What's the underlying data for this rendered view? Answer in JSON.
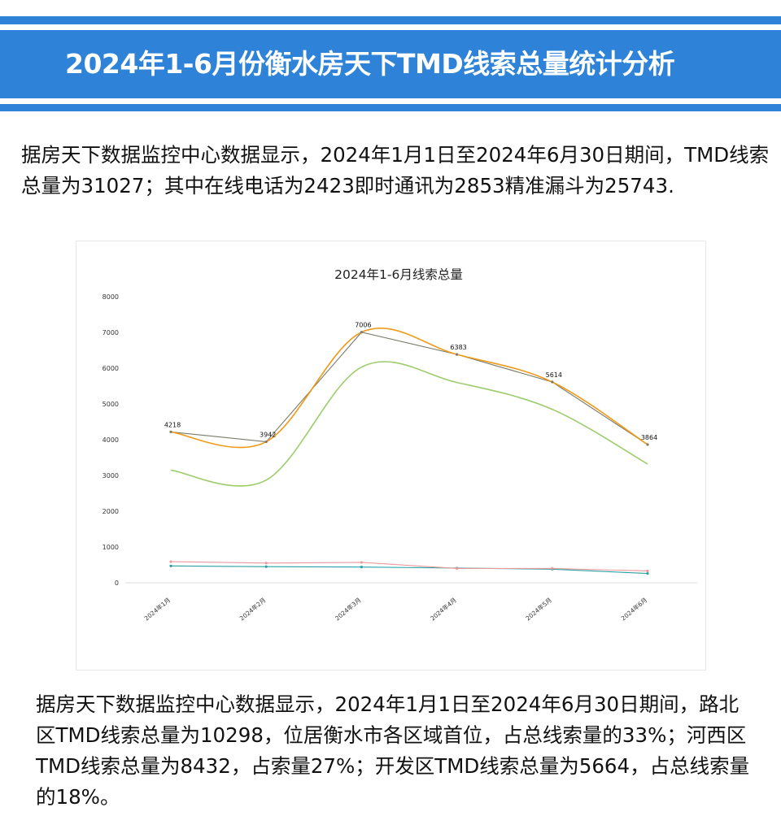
{
  "banner": {
    "title": "2024年1-6月份衡水房天下TMD线索总量统计分析"
  },
  "intro": {
    "text": "据房天下数据监控中心数据显示，2024年1月1日至2024年6月30日期间，TMD线索总量为31027；其中在线电话为2423即时通讯为2853精准漏斗为25743."
  },
  "summary": {
    "text": "据房天下数据监控中心数据显示，2024年1月1日至2024年6月30日期间，路北区TMD线索总量为10298，位居衡水市各区域首位，占总线索量的33%；河西区TMD线索总量为8432，占索量27%；开发区TMD线索总量为5664，占总线索量的18%。"
  },
  "colors": {
    "banner": "#2e83d8",
    "total": "#ee9a1a",
    "total_straight": "#7a7a6a",
    "funnel": "#9dcc6c",
    "im": "#e89a9a",
    "phone": "#2aa0a4"
  },
  "chart_data": {
    "type": "line",
    "title": "2024年1-6月线索总量",
    "categories": [
      "2024年1月",
      "2024年2月",
      "2024年3月",
      "2024年4月",
      "2024年5月",
      "2024年6月"
    ],
    "ylim": [
      0,
      8000
    ],
    "yticks": [
      0,
      1000,
      2000,
      3000,
      4000,
      5000,
      6000,
      7000,
      8000
    ],
    "grid": false,
    "legend": "none",
    "series": [
      {
        "values": [
          4218,
          3942,
          7006,
          6383,
          5614,
          3864
        ],
        "smooth": true,
        "labels": true,
        "color": "#ee9a1a"
      },
      {
        "values": [
          4218,
          3942,
          7006,
          6383,
          5614,
          3864
        ],
        "smooth": false,
        "color": "#7a7a6a"
      },
      {
        "values": [
          3150,
          2870,
          6030,
          5600,
          4850,
          3320
        ],
        "smooth": true,
        "color": "#9dcc6c"
      },
      {
        "values": [
          590,
          550,
          570,
          400,
          400,
          330
        ],
        "smooth": false,
        "color": "#e89a9a"
      },
      {
        "values": [
          470,
          450,
          440,
          410,
          380,
          260
        ],
        "smooth": false,
        "color": "#2aa0a4"
      }
    ]
  }
}
